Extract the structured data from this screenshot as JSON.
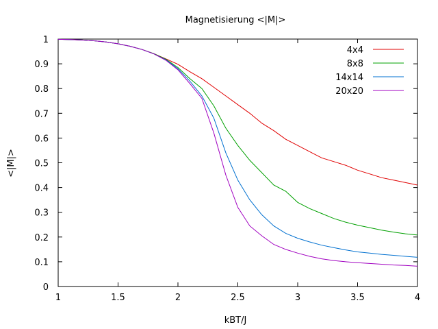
{
  "chart_data": {
    "type": "line",
    "title": "Magnetisierung <|M|>",
    "xlabel": "kBT/J",
    "ylabel": "<|M|>",
    "xlim": [
      1,
      4
    ],
    "ylim": [
      0,
      1
    ],
    "xticks": [
      1,
      1.5,
      2,
      2.5,
      3,
      3.5,
      4
    ],
    "yticks": [
      0,
      0.1,
      0.2,
      0.3,
      0.4,
      0.5,
      0.6,
      0.7,
      0.8,
      0.9,
      1
    ],
    "xtick_labels": [
      "1",
      "1.5",
      "2",
      "2.5",
      "3",
      "3.5",
      "4"
    ],
    "ytick_labels": [
      "0",
      "0.1",
      "0.2",
      "0.3",
      "0.4",
      "0.5",
      "0.6",
      "0.7",
      "0.8",
      "0.9",
      "1"
    ],
    "grid": false,
    "legend_position": "top-right",
    "series": [
      {
        "name": "4x4",
        "color": "#e00000",
        "x": [
          1.0,
          1.1,
          1.2,
          1.3,
          1.4,
          1.5,
          1.6,
          1.7,
          1.8,
          1.9,
          2.0,
          2.1,
          2.2,
          2.3,
          2.4,
          2.5,
          2.6,
          2.7,
          2.8,
          2.9,
          3.0,
          3.1,
          3.2,
          3.3,
          3.4,
          3.5,
          3.6,
          3.7,
          3.8,
          3.9,
          4.0
        ],
        "y": [
          0.999,
          0.998,
          0.996,
          0.993,
          0.988,
          0.981,
          0.971,
          0.958,
          0.941,
          0.92,
          0.898,
          0.868,
          0.84,
          0.805,
          0.77,
          0.735,
          0.7,
          0.66,
          0.63,
          0.595,
          0.57,
          0.545,
          0.52,
          0.505,
          0.49,
          0.47,
          0.455,
          0.44,
          0.43,
          0.42,
          0.41
        ]
      },
      {
        "name": "8x8",
        "color": "#00a000",
        "x": [
          1.0,
          1.1,
          1.2,
          1.3,
          1.4,
          1.5,
          1.6,
          1.7,
          1.8,
          1.9,
          2.0,
          2.1,
          2.2,
          2.3,
          2.4,
          2.5,
          2.6,
          2.7,
          2.8,
          2.9,
          3.0,
          3.1,
          3.2,
          3.3,
          3.4,
          3.5,
          3.6,
          3.7,
          3.8,
          3.9,
          4.0
        ],
        "y": [
          0.999,
          0.998,
          0.996,
          0.993,
          0.988,
          0.981,
          0.971,
          0.958,
          0.941,
          0.918,
          0.885,
          0.84,
          0.8,
          0.73,
          0.64,
          0.57,
          0.51,
          0.46,
          0.41,
          0.385,
          0.34,
          0.315,
          0.295,
          0.275,
          0.26,
          0.248,
          0.238,
          0.228,
          0.22,
          0.213,
          0.208
        ]
      },
      {
        "name": "14x14",
        "color": "#0070d0",
        "x": [
          1.0,
          1.1,
          1.2,
          1.3,
          1.4,
          1.5,
          1.6,
          1.7,
          1.8,
          1.9,
          2.0,
          2.1,
          2.2,
          2.3,
          2.4,
          2.5,
          2.6,
          2.7,
          2.8,
          2.9,
          3.0,
          3.1,
          3.2,
          3.3,
          3.4,
          3.5,
          3.6,
          3.7,
          3.8,
          3.9,
          4.0
        ],
        "y": [
          0.999,
          0.998,
          0.996,
          0.993,
          0.988,
          0.981,
          0.971,
          0.958,
          0.94,
          0.916,
          0.88,
          0.83,
          0.77,
          0.68,
          0.54,
          0.43,
          0.35,
          0.29,
          0.245,
          0.215,
          0.195,
          0.18,
          0.167,
          0.157,
          0.148,
          0.14,
          0.135,
          0.13,
          0.126,
          0.122,
          0.118
        ]
      },
      {
        "name": "20x20",
        "color": "#a000c0",
        "x": [
          1.0,
          1.1,
          1.2,
          1.3,
          1.4,
          1.5,
          1.6,
          1.7,
          1.8,
          1.9,
          2.0,
          2.1,
          2.2,
          2.3,
          2.4,
          2.5,
          2.6,
          2.7,
          2.8,
          2.9,
          3.0,
          3.1,
          3.2,
          3.3,
          3.4,
          3.5,
          3.6,
          3.7,
          3.8,
          3.9,
          4.0
        ],
        "y": [
          0.999,
          0.998,
          0.996,
          0.993,
          0.988,
          0.981,
          0.971,
          0.958,
          0.94,
          0.914,
          0.876,
          0.82,
          0.76,
          0.62,
          0.45,
          0.32,
          0.245,
          0.205,
          0.17,
          0.15,
          0.135,
          0.122,
          0.112,
          0.105,
          0.1,
          0.096,
          0.093,
          0.09,
          0.087,
          0.085,
          0.082
        ]
      }
    ]
  }
}
